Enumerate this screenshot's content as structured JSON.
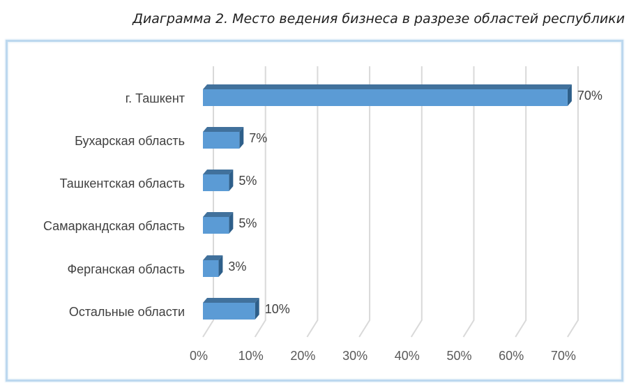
{
  "title": "Диаграмма 2. Место ведения бизнеса в разрезе областей республики",
  "colors": {
    "bar_front": "#5b9bd5",
    "bar_top": "#41719c",
    "bar_side": "#2e5f8a",
    "grid": "#d9d9d9",
    "frame": "#bcd8ef"
  },
  "chart_data": {
    "type": "bar",
    "orientation": "horizontal",
    "title": "Диаграмма 2. Место ведения бизнеса в разрезе областей республики",
    "categories": [
      "г. Ташкент",
      "Бухарская область",
      "Ташкентская область",
      "Самаркандская область",
      "Ферганская область",
      "Остальные области"
    ],
    "values": [
      70,
      7,
      5,
      5,
      3,
      10
    ],
    "value_labels": [
      "70%",
      "7%",
      "5%",
      "5%",
      "3%",
      "10%"
    ],
    "x_ticks": [
      "0%",
      "10%",
      "20%",
      "30%",
      "40%",
      "50%",
      "60%",
      "70%"
    ],
    "xlim": [
      0,
      70
    ],
    "grid": true,
    "style": "3d"
  }
}
